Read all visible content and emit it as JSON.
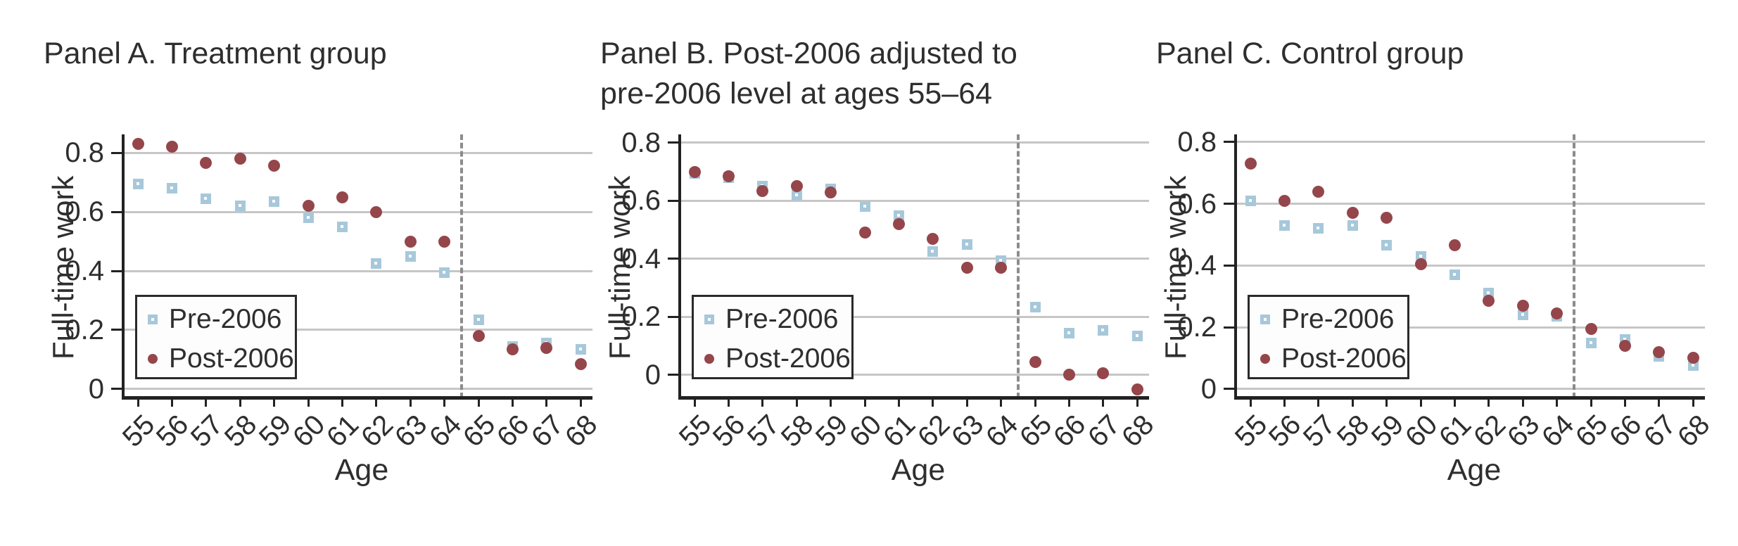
{
  "colors": {
    "pre": "#a7c8da",
    "post": "#95464b",
    "grid": "#c6c6c6",
    "axis": "#222222",
    "dashed": "#8c8c8c",
    "text": "#2e2e2e",
    "legend_bg": "#fdfdfd"
  },
  "legend": {
    "items": [
      {
        "label": "Pre-2006",
        "marker": "square"
      },
      {
        "label": "Post-2006",
        "marker": "circle"
      }
    ]
  },
  "chart_data": [
    {
      "type": "scatter",
      "panel_id": "A",
      "title_lines": [
        "Panel A. Treatment group"
      ],
      "xlabel": "Age",
      "ylabel": "Full-time work",
      "x": [
        55,
        56,
        57,
        58,
        59,
        60,
        61,
        62,
        63,
        64,
        65,
        66,
        67,
        68
      ],
      "yticks": [
        0,
        0.2,
        0.4,
        0.6,
        0.8
      ],
      "ylim": [
        -0.031,
        0.862
      ],
      "vline_x": 64.5,
      "grid": true,
      "legend_position": "lower-left",
      "series": [
        {
          "name": "Pre-2006",
          "marker": "square",
          "color_key": "pre",
          "values": [
            0.695,
            0.68,
            0.645,
            0.62,
            0.635,
            0.58,
            0.55,
            0.425,
            0.45,
            0.395,
            0.235,
            0.145,
            0.155,
            0.135
          ]
        },
        {
          "name": "Post-2006",
          "marker": "circle",
          "color_key": "post",
          "values": [
            0.83,
            0.82,
            0.765,
            0.78,
            0.755,
            0.62,
            0.65,
            0.6,
            0.5,
            0.5,
            0.18,
            0.135,
            0.14,
            0.085
          ]
        }
      ]
    },
    {
      "type": "scatter",
      "panel_id": "B",
      "title_lines": [
        "Panel B. Post-2006 adjusted to",
        "pre-2006 level at ages 55–64"
      ],
      "xlabel": "Age",
      "ylabel": "Full-time work",
      "x": [
        55,
        56,
        57,
        58,
        59,
        60,
        61,
        62,
        63,
        64,
        65,
        66,
        67,
        68
      ],
      "yticks": [
        0,
        0.2,
        0.4,
        0.6,
        0.8
      ],
      "ylim": [
        -0.08,
        0.829
      ],
      "vline_x": 64.5,
      "grid": true,
      "legend_position": "lower-left",
      "series": [
        {
          "name": "Pre-2006",
          "marker": "square",
          "color_key": "pre",
          "values": [
            0.695,
            0.68,
            0.65,
            0.62,
            0.64,
            0.58,
            0.55,
            0.425,
            0.45,
            0.395,
            0.235,
            0.145,
            0.155,
            0.135
          ]
        },
        {
          "name": "Post-2006",
          "marker": "circle",
          "color_key": "post",
          "values": [
            0.7,
            0.685,
            0.635,
            0.65,
            0.63,
            0.49,
            0.52,
            0.47,
            0.37,
            0.37,
            0.045,
            0.0,
            0.005,
            -0.05
          ]
        }
      ]
    },
    {
      "type": "scatter",
      "panel_id": "C",
      "title_lines": [
        "Panel C. Control group"
      ],
      "xlabel": "Age",
      "ylabel": "Full-time work",
      "x": [
        55,
        56,
        57,
        58,
        59,
        60,
        61,
        62,
        63,
        64,
        65,
        66,
        67,
        68
      ],
      "yticks": [
        0,
        0.2,
        0.4,
        0.6,
        0.8
      ],
      "ylim": [
        -0.03,
        0.825
      ],
      "vline_x": 64.5,
      "grid": true,
      "legend_position": "lower-left",
      "series": [
        {
          "name": "Pre-2006",
          "marker": "square",
          "color_key": "pre",
          "values": [
            0.61,
            0.53,
            0.52,
            0.53,
            0.465,
            0.43,
            0.37,
            0.31,
            0.24,
            0.235,
            0.15,
            0.16,
            0.105,
            0.075
          ]
        },
        {
          "name": "Post-2006",
          "marker": "circle",
          "color_key": "post",
          "values": [
            0.73,
            0.61,
            0.64,
            0.57,
            0.555,
            0.405,
            0.465,
            0.285,
            0.27,
            0.245,
            0.195,
            0.14,
            0.12,
            0.1
          ]
        }
      ]
    }
  ]
}
